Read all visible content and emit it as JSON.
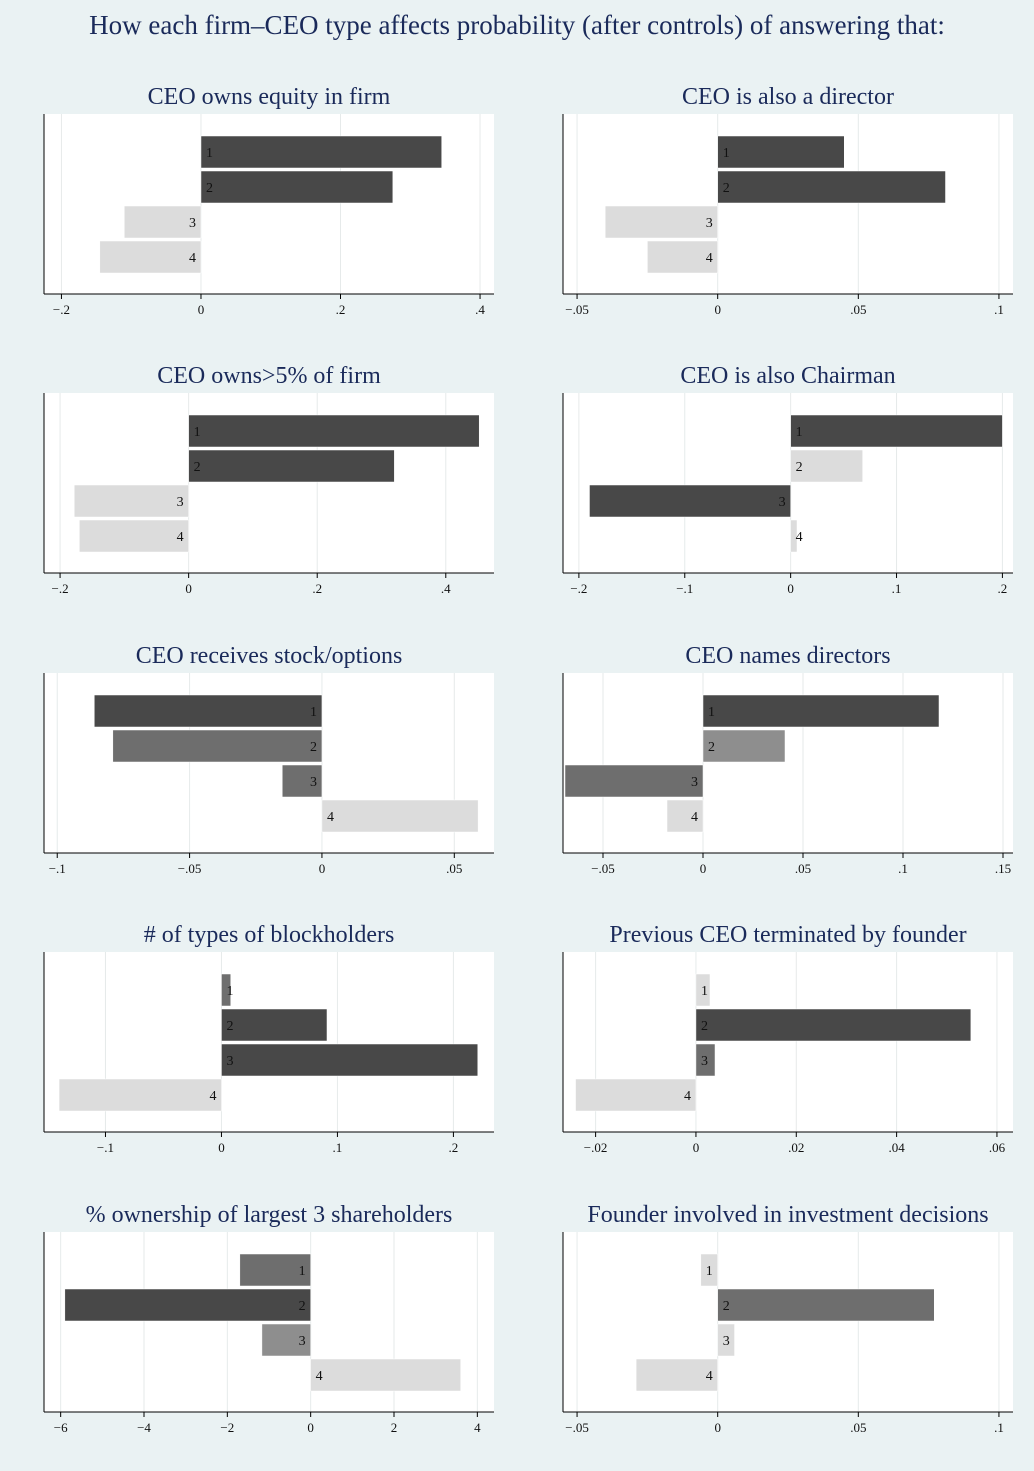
{
  "title": "How each firm–CEO type affects probability (after controls) of answering that:",
  "colors": {
    "background": "#eaf2f3",
    "plot_bg": "#ffffff",
    "grid": "#e6eaea",
    "dark": "#484848",
    "medium": "#6e6e6e",
    "light_medium": "#8e8e8e",
    "light": "#dcdcdc",
    "title": "#1a2a5a"
  },
  "chart_data": [
    {
      "type": "bar",
      "orientation": "horizontal",
      "title": "CEO owns equity in firm",
      "categories": [
        "1",
        "2",
        "3",
        "4"
      ],
      "values": [
        0.345,
        0.275,
        -0.11,
        -0.145
      ],
      "shades": [
        "dark",
        "dark",
        "light",
        "light"
      ],
      "xlim": [
        -0.225,
        0.42
      ],
      "ticks": [
        -0.2,
        0,
        0.2,
        0.4
      ],
      "tick_labels": [
        "−.2",
        "0",
        ".2",
        ".4"
      ]
    },
    {
      "type": "bar",
      "orientation": "horizontal",
      "title": "CEO is also a director",
      "categories": [
        "1",
        "2",
        "3",
        "4"
      ],
      "values": [
        0.045,
        0.081,
        -0.04,
        -0.025
      ],
      "shades": [
        "dark",
        "dark",
        "light",
        "light"
      ],
      "xlim": [
        -0.055,
        0.105
      ],
      "ticks": [
        -0.05,
        0,
        0.05,
        0.1
      ],
      "tick_labels": [
        "−.05",
        "0",
        ".05",
        ".1"
      ]
    },
    {
      "type": "bar",
      "orientation": "horizontal",
      "title": "CEO owns>5% of firm",
      "categories": [
        "1",
        "2",
        "3",
        "4"
      ],
      "values": [
        0.452,
        0.32,
        -0.178,
        -0.17
      ],
      "shades": [
        "dark",
        "dark",
        "light",
        "light"
      ],
      "xlim": [
        -0.225,
        0.475
      ],
      "ticks": [
        -0.2,
        0,
        0.2,
        0.4
      ],
      "tick_labels": [
        "−.2",
        "0",
        ".2",
        ".4"
      ]
    },
    {
      "type": "bar",
      "orientation": "horizontal",
      "title": "CEO is also Chairman",
      "categories": [
        "1",
        "2",
        "3",
        "4"
      ],
      "values": [
        0.2,
        0.068,
        -0.19,
        0.006
      ],
      "shades": [
        "dark",
        "light",
        "dark",
        "light"
      ],
      "xlim": [
        -0.215,
        0.21
      ],
      "ticks": [
        -0.2,
        -0.1,
        0,
        0.1,
        0.2
      ],
      "tick_labels": [
        "−.2",
        "−.1",
        "0",
        ".1",
        ".2"
      ]
    },
    {
      "type": "bar",
      "orientation": "horizontal",
      "title": "CEO receives stock/options",
      "categories": [
        "1",
        "2",
        "3",
        "4"
      ],
      "values": [
        -0.086,
        -0.079,
        -0.015,
        0.059
      ],
      "shades": [
        "dark",
        "medium",
        "medium",
        "light"
      ],
      "xlim": [
        -0.105,
        0.065
      ],
      "ticks": [
        -0.1,
        -0.05,
        0,
        0.05
      ],
      "tick_labels": [
        "−.1",
        "−.05",
        "0",
        ".05"
      ]
    },
    {
      "type": "bar",
      "orientation": "horizontal",
      "title": "CEO names directors",
      "categories": [
        "1",
        "2",
        "3",
        "4"
      ],
      "values": [
        0.118,
        0.041,
        -0.069,
        -0.018
      ],
      "shades": [
        "dark",
        "light_medium",
        "medium",
        "light"
      ],
      "xlim": [
        -0.07,
        0.155
      ],
      "ticks": [
        -0.05,
        0,
        0.05,
        0.1,
        0.15
      ],
      "tick_labels": [
        "−.05",
        "0",
        ".05",
        ".1",
        ".15"
      ]
    },
    {
      "type": "bar",
      "orientation": "horizontal",
      "title": "# of types of blockholders",
      "categories": [
        "1",
        "2",
        "3",
        "4"
      ],
      "values": [
        0.008,
        0.091,
        0.221,
        -0.14
      ],
      "shades": [
        "medium",
        "dark",
        "dark",
        "light"
      ],
      "xlim": [
        -0.153,
        0.235
      ],
      "ticks": [
        -0.1,
        0,
        0.1,
        0.2
      ],
      "tick_labels": [
        "−.1",
        "0",
        ".1",
        ".2"
      ]
    },
    {
      "type": "bar",
      "orientation": "horizontal",
      "title": "Previous CEO terminated by founder",
      "categories": [
        "1",
        "2",
        "3",
        "4"
      ],
      "values": [
        0.0028,
        0.0548,
        0.0038,
        -0.024
      ],
      "shades": [
        "light",
        "dark",
        "medium",
        "light"
      ],
      "xlim": [
        -0.0265,
        0.0632
      ],
      "ticks": [
        -0.02,
        0,
        0.02,
        0.04,
        0.06
      ],
      "tick_labels": [
        "−.02",
        "0",
        ".02",
        ".04",
        ".06"
      ]
    },
    {
      "type": "bar",
      "orientation": "horizontal",
      "title": "% ownership of largest 3 shareholders",
      "categories": [
        "1",
        "2",
        "3",
        "4"
      ],
      "values": [
        -1.7,
        -5.9,
        -1.17,
        3.6
      ],
      "shades": [
        "medium",
        "dark",
        "light_medium",
        "light"
      ],
      "xlim": [
        -6.4,
        4.4
      ],
      "ticks": [
        -6,
        -4,
        -2,
        0,
        2,
        4
      ],
      "tick_labels": [
        "−6",
        "−4",
        "−2",
        "0",
        "2",
        "4"
      ]
    },
    {
      "type": "bar",
      "orientation": "horizontal",
      "title": "Founder involved in investment decisions",
      "categories": [
        "1",
        "2",
        "3",
        "4"
      ],
      "values": [
        -0.006,
        0.077,
        0.006,
        -0.029
      ],
      "shades": [
        "light",
        "medium",
        "light",
        "light"
      ],
      "xlim": [
        -0.055,
        0.105
      ],
      "ticks": [
        -0.05,
        0,
        0.05,
        0.1
      ],
      "tick_labels": [
        "−.05",
        "0",
        ".05",
        ".1"
      ]
    }
  ]
}
